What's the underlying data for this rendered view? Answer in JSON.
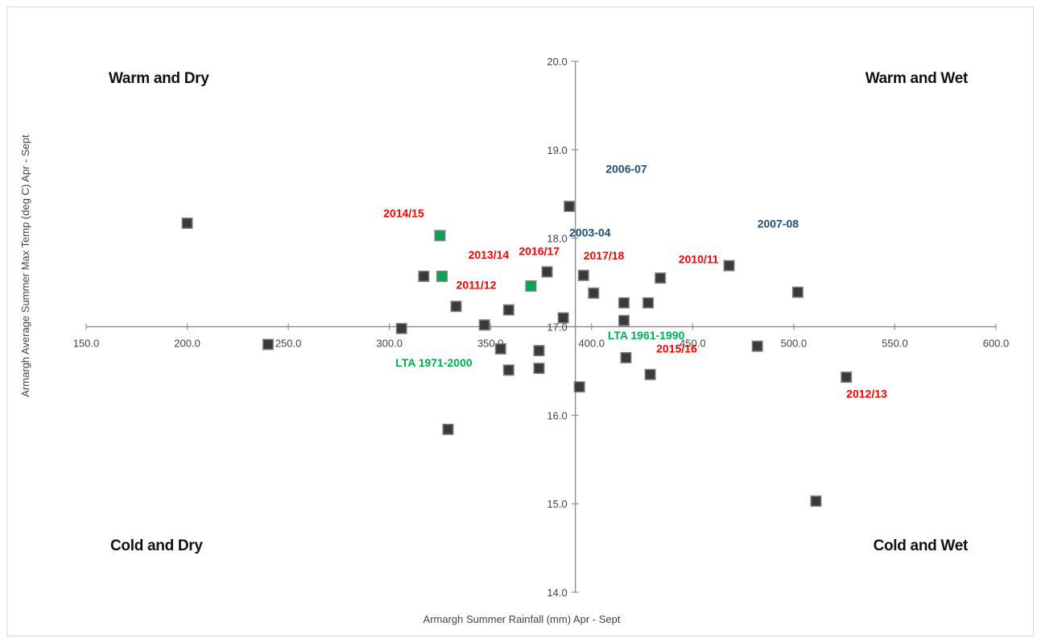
{
  "chart_data": {
    "type": "scatter",
    "title": "",
    "xlabel": "Armargh Summer Rainfall (mm) Apr - Sept",
    "ylabel": "Armargh Average Summer Max Temp (deg C) Apr - Sept",
    "xlim": [
      150,
      600
    ],
    "ylim": [
      14,
      20
    ],
    "axis_cross": {
      "x": 392,
      "y": 17.0
    },
    "x_ticks": [
      "150.0",
      "200.0",
      "250.0",
      "300.0",
      "350.0",
      "400.0",
      "450.0",
      "500.0",
      "550.0",
      "600.0"
    ],
    "y_ticks": [
      "14.0",
      "15.0",
      "16.0",
      "17.0",
      "18.0",
      "19.0",
      "20.0"
    ],
    "grid": false,
    "quadrant_labels": {
      "top_left": "Warm and Dry",
      "top_right": "Warm and Wet",
      "bottom_left": "Cold and Dry",
      "bottom_right": "Cold and Wet"
    },
    "colors": {
      "marker": "#3a3a3a",
      "highlight": "#00a651",
      "red_label": "#ff0000",
      "blue_label": "#1f4e79",
      "green_label": "#00b050"
    },
    "points": [
      {
        "x": 200,
        "y": 18.17,
        "hl": false
      },
      {
        "x": 240,
        "y": 16.8,
        "hl": false
      },
      {
        "x": 306,
        "y": 16.98,
        "hl": false
      },
      {
        "x": 317,
        "y": 17.57,
        "hl": false
      },
      {
        "x": 325,
        "y": 18.03,
        "hl": true
      },
      {
        "x": 326,
        "y": 17.57,
        "hl": true
      },
      {
        "x": 329,
        "y": 15.84,
        "hl": false
      },
      {
        "x": 333,
        "y": 17.23,
        "hl": false
      },
      {
        "x": 347,
        "y": 17.02,
        "hl": false
      },
      {
        "x": 355,
        "y": 16.75,
        "hl": false
      },
      {
        "x": 359,
        "y": 16.51,
        "hl": false
      },
      {
        "x": 359,
        "y": 17.19,
        "hl": false
      },
      {
        "x": 370,
        "y": 17.46,
        "hl": true
      },
      {
        "x": 374,
        "y": 16.53,
        "hl": false
      },
      {
        "x": 374,
        "y": 16.73,
        "hl": false
      },
      {
        "x": 378,
        "y": 17.62,
        "hl": false
      },
      {
        "x": 386,
        "y": 17.1,
        "hl": false
      },
      {
        "x": 389,
        "y": 18.36,
        "hl": false
      },
      {
        "x": 394,
        "y": 16.32,
        "hl": false
      },
      {
        "x": 396,
        "y": 17.58,
        "hl": false
      },
      {
        "x": 401,
        "y": 17.38,
        "hl": false
      },
      {
        "x": 416,
        "y": 17.27,
        "hl": false
      },
      {
        "x": 416,
        "y": 17.07,
        "hl": false
      },
      {
        "x": 417,
        "y": 16.65,
        "hl": false
      },
      {
        "x": 428,
        "y": 17.27,
        "hl": false
      },
      {
        "x": 429,
        "y": 16.46,
        "hl": false
      },
      {
        "x": 434,
        "y": 17.55,
        "hl": false
      },
      {
        "x": 468,
        "y": 17.69,
        "hl": false
      },
      {
        "x": 482,
        "y": 16.78,
        "hl": false
      },
      {
        "x": 502,
        "y": 17.39,
        "hl": false
      },
      {
        "x": 511,
        "y": 15.03,
        "hl": false
      },
      {
        "x": 526,
        "y": 16.43,
        "hl": false
      }
    ],
    "annotations": [
      {
        "text": "2014/15",
        "x": 297,
        "y": 18.24,
        "color": "red"
      },
      {
        "text": "2013/14",
        "x": 339,
        "y": 17.77,
        "color": "red"
      },
      {
        "text": "2016/17",
        "x": 364,
        "y": 17.81,
        "color": "red"
      },
      {
        "text": "2017/18",
        "x": 396,
        "y": 17.76,
        "color": "red"
      },
      {
        "text": "2010/11",
        "x": 443,
        "y": 17.72,
        "color": "red"
      },
      {
        "text": "2011/12",
        "x": 333,
        "y": 17.43,
        "color": "red"
      },
      {
        "text": "2015/16",
        "x": 432,
        "y": 16.71,
        "color": "red"
      },
      {
        "text": "2012/13",
        "x": 526,
        "y": 16.2,
        "color": "red"
      },
      {
        "text": "2006-07",
        "x": 407,
        "y": 18.74,
        "color": "blue"
      },
      {
        "text": "2003-04",
        "x": 389,
        "y": 18.02,
        "color": "blue"
      },
      {
        "text": "2007-08",
        "x": 482,
        "y": 18.12,
        "color": "blue"
      },
      {
        "text": "LTA 1971-2000",
        "x": 303,
        "y": 16.55,
        "color": "green"
      },
      {
        "text": "LTA 1961-1990",
        "x": 408,
        "y": 16.86,
        "color": "green"
      }
    ]
  }
}
